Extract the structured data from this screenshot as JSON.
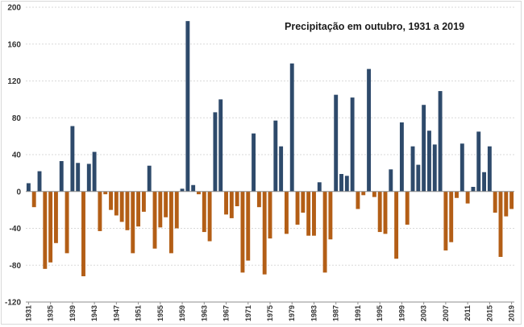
{
  "chart_data": {
    "type": "bar",
    "title": "Precipitação em outubro, 1931 a 2019",
    "xlabel": "",
    "ylabel": "",
    "ylim": [
      -120,
      200
    ],
    "yticks": [
      -120,
      -80,
      -40,
      0,
      40,
      80,
      120,
      160,
      200
    ],
    "grid": true,
    "legend": "none",
    "x_tick_labels": [
      "1931",
      "1935",
      "1939",
      "1943",
      "1947",
      "1951",
      "1955",
      "1959",
      "1963",
      "1967",
      "1971",
      "1975",
      "1979",
      "1983",
      "1987",
      "1991",
      "1995",
      "1999",
      "2003",
      "2007",
      "2011",
      "2015",
      "2019"
    ],
    "colors": {
      "positive": "#2e4a6b",
      "negative": "#b35e16"
    },
    "categories": [
      1931,
      1932,
      1933,
      1934,
      1935,
      1936,
      1937,
      1938,
      1939,
      1940,
      1941,
      1942,
      1943,
      1944,
      1945,
      1946,
      1947,
      1948,
      1949,
      1950,
      1951,
      1952,
      1953,
      1954,
      1955,
      1956,
      1957,
      1958,
      1959,
      1960,
      1961,
      1962,
      1963,
      1964,
      1965,
      1966,
      1967,
      1968,
      1969,
      1970,
      1971,
      1972,
      1973,
      1974,
      1975,
      1976,
      1977,
      1978,
      1979,
      1980,
      1981,
      1982,
      1983,
      1984,
      1985,
      1986,
      1987,
      1988,
      1989,
      1990,
      1991,
      1992,
      1993,
      1994,
      1995,
      1996,
      1997,
      1998,
      1999,
      2000,
      2001,
      2002,
      2003,
      2004,
      2005,
      2006,
      2007,
      2008,
      2009,
      2010,
      2011,
      2012,
      2013,
      2014,
      2015,
      2016,
      2017,
      2018,
      2019
    ],
    "values": [
      9,
      -17,
      22,
      -84,
      -77,
      -56,
      33,
      -67,
      71,
      31,
      -92,
      30,
      43,
      -43,
      -3,
      -20,
      -26,
      -33,
      -42,
      -67,
      -38,
      -22,
      28,
      -62,
      -39,
      -28,
      -67,
      -40,
      3,
      185,
      7,
      -3,
      -44,
      -54,
      86,
      100,
      -25,
      -29,
      -16,
      -88,
      -75,
      63,
      -17,
      -90,
      -51,
      77,
      49,
      -46,
      139,
      -36,
      -23,
      -48,
      -48,
      10,
      -88,
      -52,
      105,
      19,
      17,
      102,
      -19,
      -4,
      133,
      -6,
      -44,
      -46,
      24,
      -73,
      75,
      -36,
      49,
      29,
      94,
      66,
      51,
      109,
      -64,
      -55,
      -7,
      52,
      -13,
      5,
      65,
      21,
      49,
      -23,
      -71,
      -27,
      -19
    ]
  }
}
